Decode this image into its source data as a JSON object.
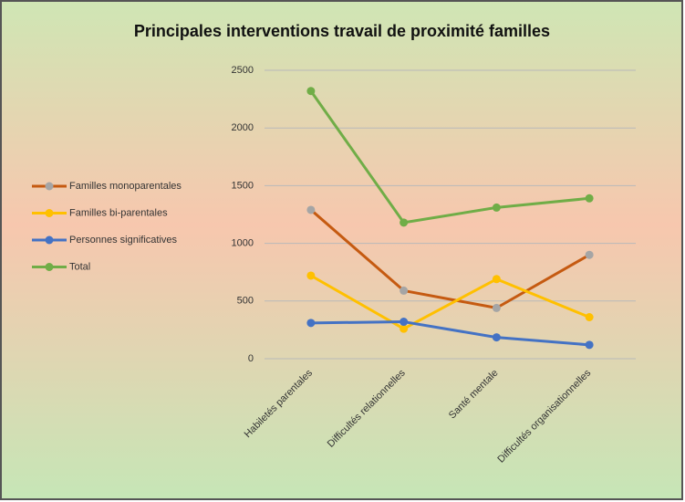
{
  "chart_data": {
    "type": "line",
    "title": "Principales interventions travail de proximité familles",
    "categories": [
      "Habiletés parentales",
      "Difficultés relationnelles",
      "Santé mentale",
      "Difficultés organisationnelles"
    ],
    "series": [
      {
        "name": "Familles monoparentales",
        "color": "#c55a11",
        "marker_color": "#a5a5a5",
        "values": [
          1290,
          590,
          440,
          900
        ]
      },
      {
        "name": "Familles bi-parentales",
        "color": "#ffc000",
        "marker_color": "#ffc000",
        "values": [
          720,
          260,
          690,
          360
        ]
      },
      {
        "name": "Personnes significatives",
        "color": "#4472c4",
        "marker_color": "#4472c4",
        "values": [
          310,
          320,
          185,
          120
        ]
      },
      {
        "name": "Total",
        "color": "#70ad47",
        "marker_color": "#70ad47",
        "values": [
          2320,
          1180,
          1310,
          1390
        ]
      }
    ],
    "ylim": [
      0,
      2500
    ],
    "yticks": [
      0,
      500,
      1000,
      1500,
      2000,
      2500
    ],
    "grid": true,
    "legend": "left"
  }
}
